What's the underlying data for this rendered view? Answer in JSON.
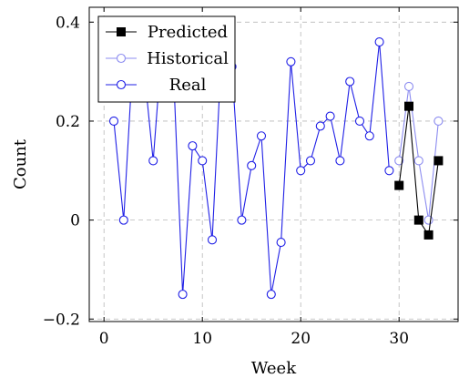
{
  "chart_data": {
    "type": "line",
    "xlabel": "Week",
    "ylabel": "Count",
    "xlim": [
      -1.5,
      36
    ],
    "ylim": [
      -0.205,
      0.43
    ],
    "xticks": [
      0,
      10,
      20,
      30
    ],
    "xtick_labels": [
      "0",
      "10",
      "20",
      "30"
    ],
    "yticks": [
      -0.2,
      0,
      0.2,
      0.4
    ],
    "ytick_labels": [
      "−0.2",
      "0",
      "0.2",
      "0.4"
    ],
    "grid": true,
    "legend_position": "top-left",
    "series": [
      {
        "name": "Predicted",
        "color": "#000000",
        "marker": "filled-square",
        "x": [
          30,
          31,
          32,
          33,
          34
        ],
        "y": [
          0.07,
          0.23,
          0.0,
          -0.03,
          0.12
        ]
      },
      {
        "name": "Historical",
        "color": "#8c8cf0",
        "marker": "open-circle",
        "x": [
          30,
          31,
          32,
          33,
          34
        ],
        "y": [
          0.12,
          0.27,
          0.12,
          0.0,
          0.2
        ]
      },
      {
        "name": "Real",
        "color": "#1f1fe6",
        "marker": "open-circle",
        "x": [
          1,
          2,
          3,
          4,
          5,
          6,
          7,
          8,
          9,
          10,
          11,
          12,
          13,
          14,
          15,
          16,
          17,
          18,
          19,
          20,
          21,
          22,
          23,
          24,
          25,
          26,
          27,
          28,
          29
        ],
        "y": [
          0.2,
          0.0,
          0.35,
          0.32,
          0.12,
          0.38,
          0.33,
          -0.15,
          0.15,
          0.12,
          -0.04,
          0.36,
          0.31,
          0.0,
          0.11,
          0.17,
          -0.15,
          -0.045,
          0.32,
          0.1,
          0.12,
          0.19,
          0.21,
          0.12,
          0.28,
          0.2,
          0.17,
          0.36,
          0.1
        ]
      }
    ]
  }
}
